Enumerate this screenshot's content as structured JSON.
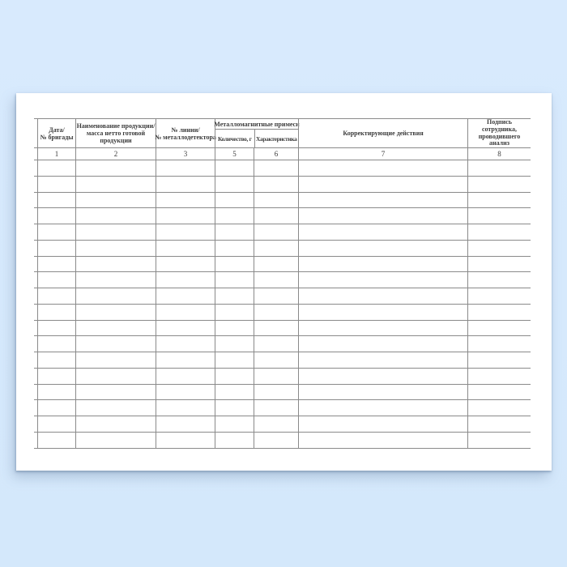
{
  "canvas": {
    "background_color": "#d6e9fc"
  },
  "paper": {
    "color": "#ffffff"
  },
  "table": {
    "line_color": "#8a8a8a",
    "text_color": "#3c3c3c",
    "group_header": {
      "label": "Металломагнитные примеси"
    },
    "columns": [
      {
        "number": "1",
        "label": "Дата/\n№ бригады"
      },
      {
        "number": "2",
        "label": "Наименование продукции/\nмасса нетто готовой\nпродукции"
      },
      {
        "number": "3",
        "label": "№ линии/\n№ металлодетектора"
      },
      {
        "number": "5",
        "label": "Количество, г"
      },
      {
        "number": "6",
        "label": "Характеристика"
      },
      {
        "number": "7",
        "label": "Корректирующие действия"
      },
      {
        "number": "8",
        "label": "Подпись\nсотрудника,\nпроводившего\nанализ"
      }
    ],
    "body_row_count": 18
  }
}
